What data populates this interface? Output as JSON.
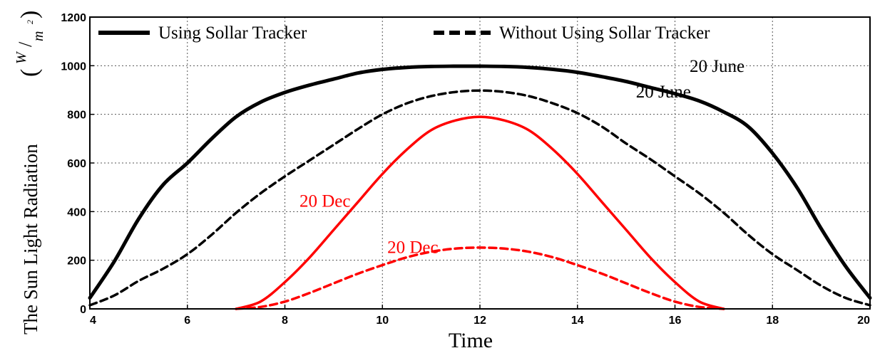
{
  "chart_data": {
    "type": "line",
    "title": "",
    "xlabel": "Time",
    "ylabel": "The Sun Light Radiation",
    "ylabel_unit": {
      "numerator": "W",
      "denominator": "m",
      "exponent": "2"
    },
    "xlim": [
      4,
      20
    ],
    "ylim": [
      0,
      1200
    ],
    "xticks": [
      4,
      6,
      8,
      10,
      12,
      14,
      16,
      18,
      20
    ],
    "yticks": [
      0,
      200,
      400,
      600,
      800,
      1000,
      1200
    ],
    "grid": true,
    "legend_position": "top",
    "legend": [
      {
        "label": "Using Sollar Tracker",
        "style": "solid"
      },
      {
        "label": "Without Using Sollar Tracker",
        "style": "dashed"
      }
    ],
    "series": [
      {
        "label": "20 June",
        "tracker": true,
        "color": "#000000",
        "style": "solid",
        "x": [
          4,
          4.5,
          5,
          5.5,
          6,
          6.5,
          7,
          7.5,
          8,
          8.5,
          9,
          9.5,
          10,
          10.5,
          11,
          11.5,
          12,
          12.5,
          13,
          13.5,
          14,
          14.5,
          15,
          15.5,
          16,
          16.5,
          17,
          17.5,
          18,
          18.5,
          19,
          19.5,
          20
        ],
        "y": [
          45,
          195,
          370,
          510,
          600,
          700,
          790,
          850,
          890,
          920,
          945,
          970,
          985,
          993,
          997,
          998,
          998,
          997,
          993,
          985,
          973,
          955,
          935,
          910,
          885,
          855,
          810,
          750,
          640,
          500,
          330,
          175,
          45
        ]
      },
      {
        "label": "20 June",
        "tracker": false,
        "color": "#000000",
        "style": "dashed",
        "x": [
          4,
          4.5,
          5,
          5.5,
          6,
          6.5,
          7,
          7.5,
          8,
          8.5,
          9,
          9.5,
          10,
          10.5,
          11,
          11.5,
          12,
          12.5,
          13,
          13.5,
          14,
          14.5,
          15,
          15.5,
          16,
          16.5,
          17,
          17.5,
          18,
          18.5,
          19,
          19.5,
          20
        ],
        "y": [
          15,
          55,
          115,
          165,
          225,
          305,
          395,
          475,
          545,
          610,
          675,
          740,
          800,
          845,
          875,
          892,
          898,
          892,
          875,
          845,
          805,
          750,
          680,
          615,
          545,
          475,
          395,
          305,
          225,
          160,
          95,
          45,
          15
        ]
      },
      {
        "label": "20 Dec",
        "tracker": true,
        "color": "#ff0000",
        "style": "solid",
        "x": [
          7,
          7.5,
          8,
          8.5,
          9,
          9.5,
          10,
          10.5,
          11,
          11.5,
          12,
          12.5,
          13,
          13.5,
          14,
          14.5,
          15,
          15.5,
          16,
          16.5,
          17
        ],
        "y": [
          0,
          30,
          110,
          210,
          325,
          440,
          555,
          655,
          735,
          775,
          790,
          775,
          735,
          655,
          555,
          440,
          325,
          210,
          110,
          30,
          0
        ]
      },
      {
        "label": "20 Dec",
        "tracker": false,
        "color": "#ff0000",
        "style": "dashed",
        "x": [
          7,
          7.5,
          8,
          8.5,
          9,
          9.5,
          10,
          10.5,
          11,
          11.5,
          12,
          12.5,
          13,
          13.5,
          14,
          14.5,
          15,
          15.5,
          16,
          16.5,
          17
        ],
        "y": [
          0,
          8,
          30,
          65,
          105,
          145,
          180,
          212,
          235,
          248,
          252,
          248,
          235,
          212,
          180,
          145,
          105,
          65,
          30,
          8,
          0
        ]
      }
    ],
    "annotations": [
      {
        "text": "20 June",
        "x": 16.3,
        "y": 975,
        "color": "#000000"
      },
      {
        "text": "20 June",
        "x": 15.2,
        "y": 870,
        "color": "#000000"
      },
      {
        "text": "20 Dec",
        "x": 8.3,
        "y": 420,
        "color": "#ff0000"
      },
      {
        "text": "20 Dec",
        "x": 10.1,
        "y": 230,
        "color": "#ff0000"
      }
    ]
  }
}
